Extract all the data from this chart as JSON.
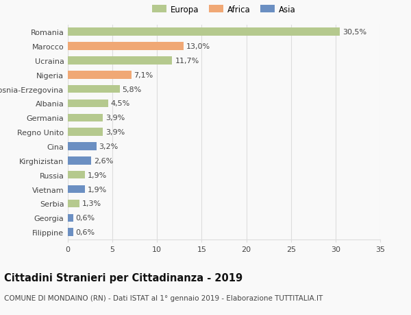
{
  "countries": [
    "Romania",
    "Marocco",
    "Ucraina",
    "Nigeria",
    "Bosnia-Erzegovina",
    "Albania",
    "Germania",
    "Regno Unito",
    "Cina",
    "Kirghizistan",
    "Russia",
    "Vietnam",
    "Serbia",
    "Georgia",
    "Filippine"
  ],
  "values": [
    30.5,
    13.0,
    11.7,
    7.1,
    5.8,
    4.5,
    3.9,
    3.9,
    3.2,
    2.6,
    1.9,
    1.9,
    1.3,
    0.6,
    0.6
  ],
  "labels": [
    "30,5%",
    "13,0%",
    "11,7%",
    "7,1%",
    "5,8%",
    "4,5%",
    "3,9%",
    "3,9%",
    "3,2%",
    "2,6%",
    "1,9%",
    "1,9%",
    "1,3%",
    "0,6%",
    "0,6%"
  ],
  "continents": [
    "Europa",
    "Africa",
    "Europa",
    "Africa",
    "Europa",
    "Europa",
    "Europa",
    "Europa",
    "Asia",
    "Asia",
    "Europa",
    "Asia",
    "Europa",
    "Asia",
    "Asia"
  ],
  "colors": {
    "Europa": "#b5c98e",
    "Africa": "#f0a875",
    "Asia": "#6b8fc2"
  },
  "title": "Cittadini Stranieri per Cittadinanza - 2019",
  "subtitle": "COMUNE DI MONDAINO (RN) - Dati ISTAT al 1° gennaio 2019 - Elaborazione TUTTITALIA.IT",
  "xlim": [
    0,
    35
  ],
  "xticks": [
    0,
    5,
    10,
    15,
    20,
    25,
    30,
    35
  ],
  "background_color": "#f9f9f9",
  "grid_color": "#dddddd",
  "bar_height": 0.55,
  "label_fontsize": 8,
  "tick_fontsize": 8,
  "title_fontsize": 10.5,
  "subtitle_fontsize": 7.5
}
